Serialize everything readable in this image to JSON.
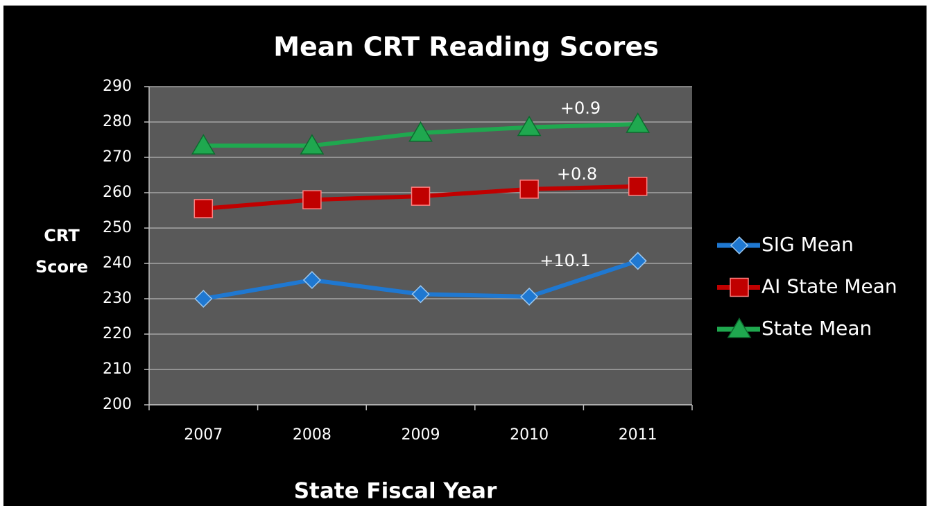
{
  "chart_data": {
    "type": "line",
    "title": "Mean CRT Reading Scores",
    "x_label": "State Fiscal Year",
    "y_label": "CRT Score",
    "categories": [
      "2007",
      "2008",
      "2009",
      "2010",
      "2011"
    ],
    "series": [
      {
        "name": "SIG Mean",
        "color": "#1f78d1",
        "marker": "diamond",
        "values": [
          230,
          235.3,
          231.3,
          230.6,
          240.7
        ]
      },
      {
        "name": "AI State Mean",
        "color": "#c00000",
        "marker": "square",
        "values": [
          255.5,
          258,
          259,
          261,
          261.8
        ]
      },
      {
        "name": "State Mean",
        "color": "#1fa84f",
        "marker": "triangle",
        "values": [
          273.3,
          273.3,
          276.9,
          278.5,
          279.4
        ]
      }
    ],
    "annotations": [
      "+0.9",
      "+0.8",
      "+10.1"
    ],
    "ylim": [
      200,
      290
    ],
    "yticks": [
      200,
      210,
      220,
      230,
      240,
      250,
      260,
      270,
      280,
      290
    ],
    "grid": true,
    "legend": "right"
  }
}
